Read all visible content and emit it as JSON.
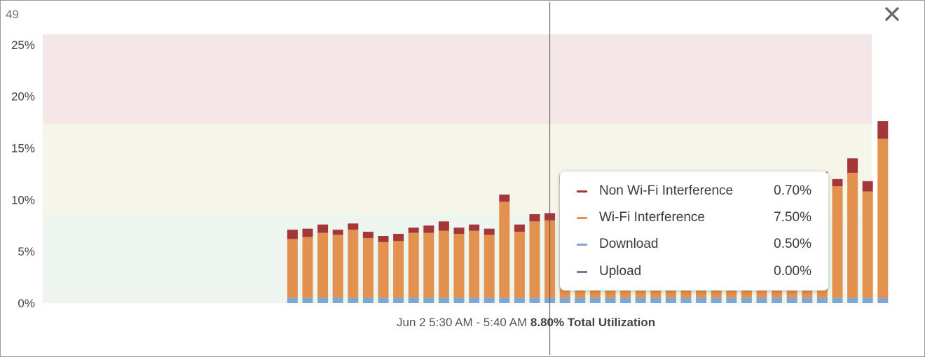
{
  "header": {
    "corner_number": "49",
    "close_icon": "close-x-icon"
  },
  "colors": {
    "non_wifi": "#a3373a",
    "wifi": "#e3914f",
    "download": "#7fa7d6",
    "upload": "#8d6a9f",
    "zone_high": "#f5e7e7",
    "zone_mid": "#f6f5e9",
    "zone_low": "#eef4ee"
  },
  "chart_data": {
    "type": "bar",
    "stacked": true,
    "ylim": [
      0,
      26
    ],
    "y_ticks": [
      "0%",
      "5%",
      "10%",
      "15%",
      "20%",
      "25%"
    ],
    "y_tick_values": [
      0,
      5,
      10,
      15,
      20,
      25
    ],
    "threshold_bands": [
      {
        "from": 0,
        "to": 8.6,
        "color": "#eef4ee"
      },
      {
        "from": 8.6,
        "to": 17.3,
        "color": "#f6f5e9"
      },
      {
        "from": 17.3,
        "to": 26,
        "color": "#f5e7e7"
      }
    ],
    "empty_slots_before": 16,
    "series": [
      {
        "name": "Download",
        "color": "#7fa7d6",
        "values": [
          0.5,
          0.5,
          0.5,
          0.5,
          0.5,
          0.5,
          0.5,
          0.5,
          0.5,
          0.5,
          0.5,
          0.5,
          0.5,
          0.5,
          0.5,
          0.5,
          0.5,
          0.5,
          0.5,
          0.5,
          0.5,
          0.5,
          0.5,
          0.5,
          0.5,
          0.5,
          0.5,
          0.5,
          0.5,
          0.5,
          0.5,
          0.5,
          0.5,
          0.5,
          0.5,
          0.5,
          0.5,
          0.5,
          0.5,
          0.5
        ]
      },
      {
        "name": "Wi-Fi Interference",
        "color": "#e3914f",
        "values": [
          5.7,
          5.9,
          6.3,
          6.1,
          6.6,
          5.8,
          5.4,
          5.5,
          6.3,
          6.3,
          6.5,
          6.2,
          6.5,
          6.1,
          9.3,
          6.4,
          7.4,
          7.5,
          11.2,
          10.4,
          9.5,
          10.2,
          9.0,
          9.4,
          9.0,
          9.5,
          9.1,
          9.6,
          10.1,
          11.0,
          11.7,
          10.7,
          10.9,
          11.3,
          10.3,
          11.6,
          10.8,
          12.1,
          10.3,
          15.4
        ]
      },
      {
        "name": "Non Wi-Fi Interference",
        "color": "#a3373a",
        "values": [
          0.9,
          0.8,
          0.8,
          0.5,
          0.6,
          0.6,
          0.6,
          0.7,
          0.5,
          0.7,
          0.9,
          0.6,
          0.6,
          0.6,
          0.7,
          0.7,
          0.7,
          0.7,
          0.7,
          0.6,
          0.7,
          0.6,
          0.7,
          0.6,
          0.7,
          0.6,
          0.7,
          0.6,
          0.7,
          0.6,
          0.4,
          0.7,
          0.7,
          0.6,
          0.7,
          0.6,
          0.7,
          1.4,
          1.0,
          1.7
        ]
      },
      {
        "name": "Upload",
        "color": "#8d6a9f",
        "values": [
          0,
          0,
          0,
          0,
          0,
          0,
          0,
          0,
          0,
          0,
          0,
          0,
          0,
          0,
          0,
          0,
          0,
          0,
          0,
          0,
          0,
          0,
          0,
          0,
          0,
          0,
          0,
          0,
          0,
          0,
          0,
          0,
          0,
          0,
          0,
          0,
          0,
          0,
          0,
          0
        ]
      }
    ],
    "hover_bar_index": 17
  },
  "tooltip": {
    "rows": [
      {
        "label": "Non Wi-Fi Interference",
        "value": "0.70%",
        "color": "#a3373a"
      },
      {
        "label": "Wi-Fi Interference",
        "value": "7.50%",
        "color": "#e3914f"
      },
      {
        "label": "Download",
        "value": "0.50%",
        "color": "#7fa7d6"
      },
      {
        "label": "Upload",
        "value": "0.00%",
        "color": "#8d6a9f"
      }
    ]
  },
  "caption": {
    "time_range": "Jun 2 5:30 AM - 5:40 AM",
    "total": "8.80% Total Utilization"
  }
}
